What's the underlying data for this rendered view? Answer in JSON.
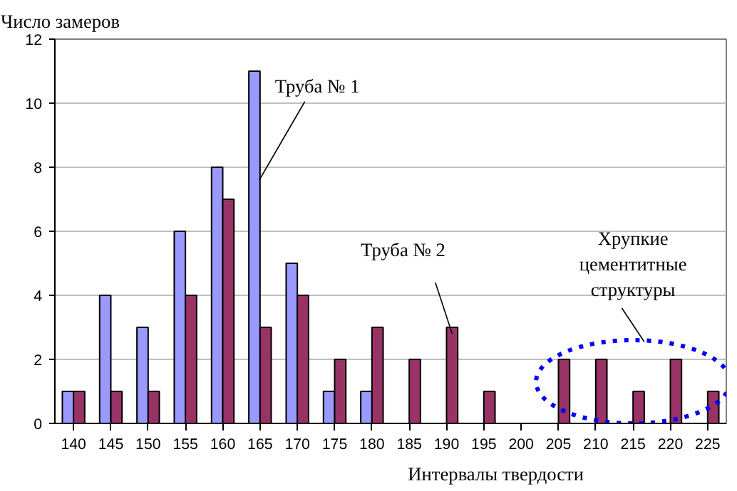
{
  "chart_data": {
    "type": "bar",
    "ylabel": "Число замеров",
    "xlabel": "Интервалы твердости",
    "categories": [
      "140",
      "145",
      "150",
      "155",
      "160",
      "165",
      "170",
      "175",
      "180",
      "185",
      "190",
      "195",
      "200",
      "205",
      "210",
      "215",
      "220",
      "225"
    ],
    "series": [
      {
        "name": "Труба № 1",
        "color": "#9999ff",
        "values": [
          1,
          4,
          3,
          6,
          8,
          11,
          5,
          1,
          1,
          0,
          0,
          0,
          0,
          0,
          0,
          0,
          0,
          0
        ]
      },
      {
        "name": "Труба № 2",
        "color": "#993366",
        "values": [
          1,
          1,
          1,
          4,
          7,
          3,
          4,
          2,
          3,
          2,
          3,
          1,
          0,
          2,
          2,
          1,
          2,
          1
        ]
      }
    ],
    "ylim": [
      0,
      12
    ],
    "yticks": [
      0,
      2,
      4,
      6,
      8,
      10,
      12
    ],
    "grid": "y",
    "annotations": [
      "Хрупкие цементитные структуры"
    ]
  }
}
